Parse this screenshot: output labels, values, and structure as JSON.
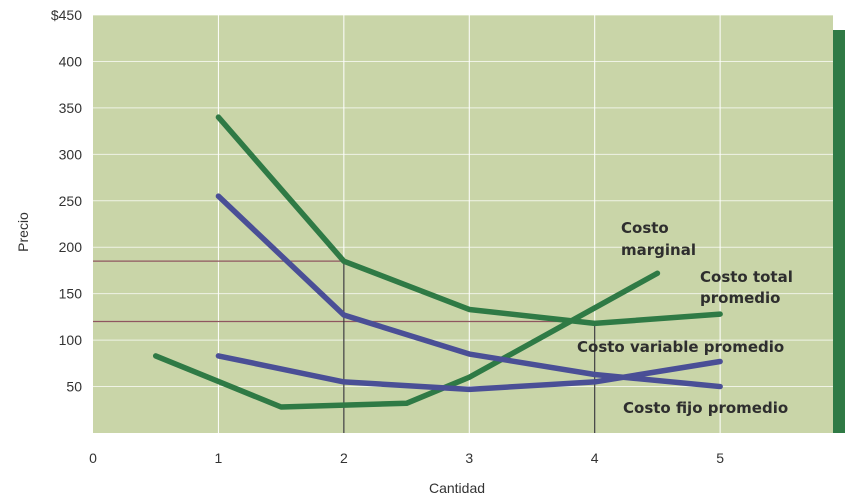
{
  "chart_data": {
    "type": "line",
    "xlabel": "Cantidad",
    "ylabel": "Precio",
    "xlim": [
      0,
      5.9
    ],
    "ylim": [
      0,
      450
    ],
    "x_ticks": [
      "0",
      "1",
      "2",
      "3",
      "4",
      "5"
    ],
    "y_ticks": [
      "",
      "50",
      "100",
      "150",
      "200",
      "250",
      "300",
      "350",
      "400",
      "$450"
    ],
    "grid": true,
    "colors": {
      "plot_bg": "#c9d5a8",
      "grid": "#ffffff",
      "green_series": "#2f7a45",
      "blue_series": "#4a4f96",
      "ref_line": "#8f5660",
      "right_band": "#2f7a45"
    },
    "series": [
      {
        "name": "Costo marginal",
        "color": "#2f7a45",
        "x": [
          0.5,
          1.5,
          2.5,
          3.0,
          4.5
        ],
        "y": [
          83,
          28,
          32,
          60,
          172
        ]
      },
      {
        "name": "Costo total promedio",
        "color": "#2f7a45",
        "x": [
          1,
          2,
          3,
          4,
          5
        ],
        "y": [
          340,
          185,
          133,
          118,
          128
        ]
      },
      {
        "name": "Costo variable promedio",
        "color": "#4a4f96",
        "x": [
          1,
          2,
          3,
          4,
          5
        ],
        "y": [
          83,
          55,
          47,
          55,
          77
        ]
      },
      {
        "name": "Costo fijo promedio",
        "color": "#4a4f96",
        "x": [
          1,
          2,
          3,
          4,
          5
        ],
        "y": [
          255,
          127,
          85,
          63,
          50
        ]
      }
    ],
    "reference_lines": [
      {
        "type": "h",
        "y": 185,
        "x_from": 0,
        "x_to": 2
      },
      {
        "type": "h",
        "y": 120,
        "x_from": 0,
        "x_to": 4
      },
      {
        "type": "v",
        "x": 2,
        "y_from": 0,
        "y_to": 185
      },
      {
        "type": "v",
        "x": 4,
        "y_from": 0,
        "y_to": 120
      }
    ],
    "annotations": [
      {
        "lines": [
          "Costo",
          "marginal"
        ]
      },
      {
        "lines": [
          "Costo total",
          "promedio"
        ]
      },
      {
        "lines": [
          "Costo variable promedio"
        ]
      },
      {
        "lines": [
          "Costo fijo promedio"
        ]
      }
    ]
  }
}
